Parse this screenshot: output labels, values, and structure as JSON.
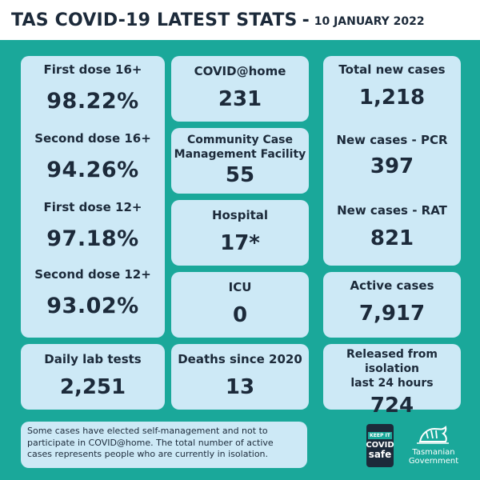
{
  "header": {
    "title": "TAS COVID-19 LATEST STATS",
    "separator": "-",
    "date": "10 JANUARY 2022"
  },
  "vaccination": [
    {
      "label": "First dose 16+",
      "value": "98.22%"
    },
    {
      "label": "Second dose 16+",
      "value": "94.26%"
    },
    {
      "label": "First dose 12+",
      "value": "97.18%"
    },
    {
      "label": "Second dose 12+",
      "value": "93.02%"
    }
  ],
  "covid_home": {
    "label": "COVID@home",
    "value": "231"
  },
  "community_facility": {
    "label_line1": "Community Case",
    "label_line2": "Management Facility",
    "value": "55"
  },
  "hospital": {
    "label": "Hospital",
    "value": "17*"
  },
  "icu": {
    "label": "ICU",
    "value": "0"
  },
  "new_cases": {
    "total_label": "Total new cases",
    "total_value": "1,218",
    "pcr_label": "New cases - PCR",
    "pcr_value": "397",
    "rat_label": "New cases - RAT",
    "rat_value": "821"
  },
  "active_cases": {
    "label": "Active cases",
    "value": "7,917"
  },
  "lab_tests": {
    "label": "Daily lab tests",
    "value": "2,251"
  },
  "deaths": {
    "label": "Deaths since 2020",
    "value": "13"
  },
  "released": {
    "label_line1": "Released from isolation",
    "label_line2": "last 24 hours",
    "value": "724"
  },
  "footnote": "Some cases have elected self-management and not to participate in COVID@home. The total number of active cases represents people who are currently in isolation.",
  "covid_safe_logo": {
    "keep_it": "KEEP IT",
    "covid": "COVID",
    "safe": "safe"
  },
  "gov_logo": {
    "line1": "Tasmanian",
    "line2": "Government"
  },
  "colors": {
    "background": "#1aa89a",
    "card": "#cde9f6",
    "text": "#1c2a3a"
  }
}
